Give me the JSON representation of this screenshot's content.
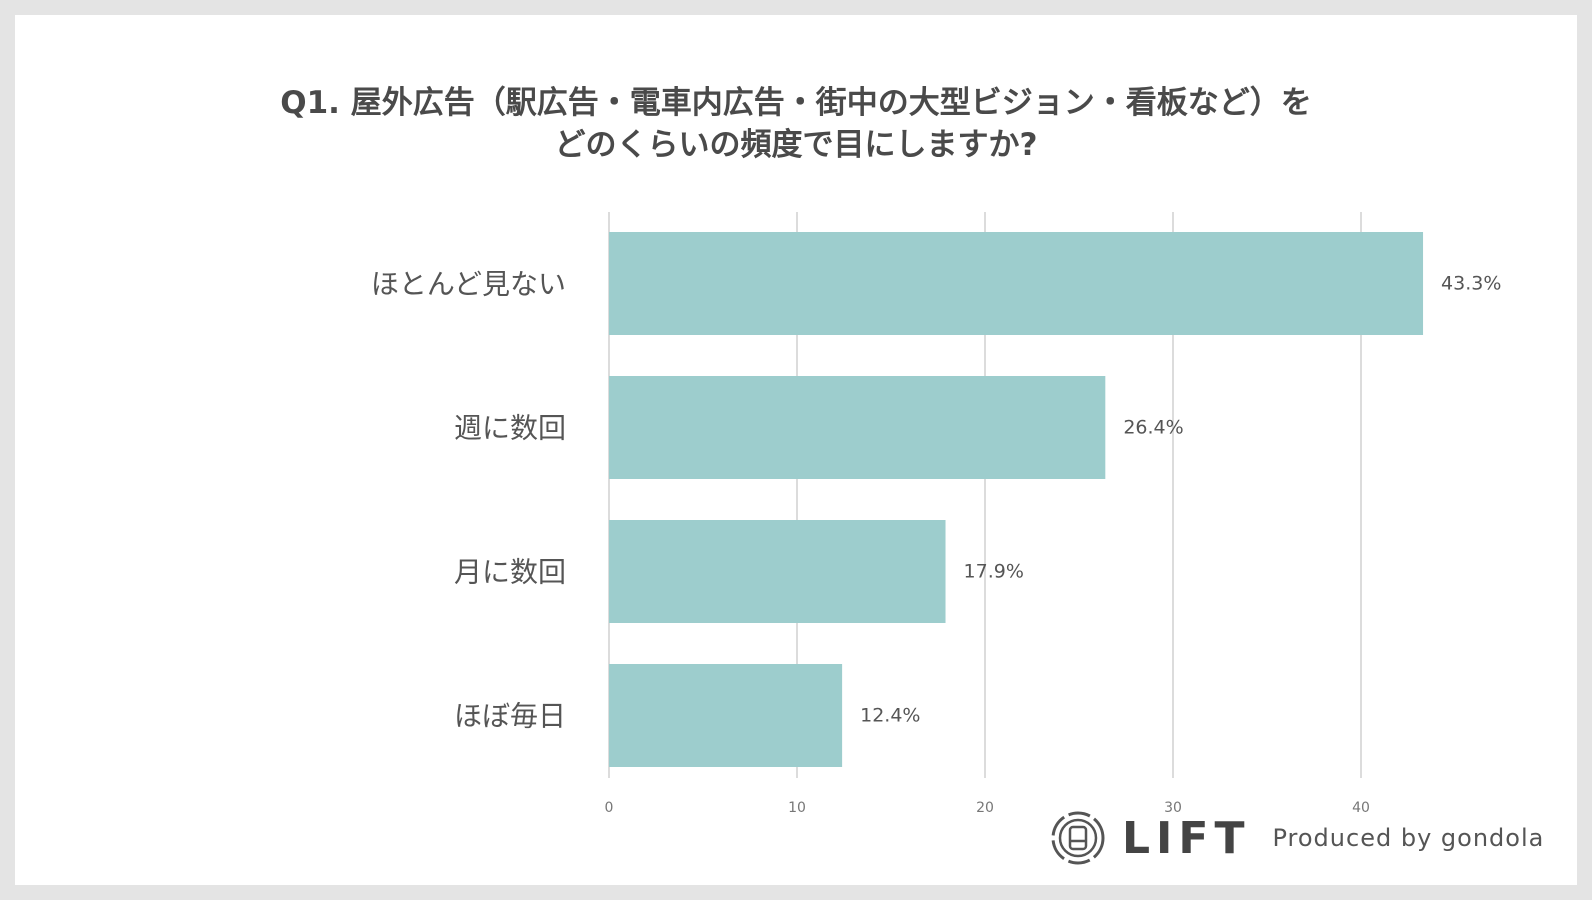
{
  "chart_data": {
    "type": "bar",
    "orientation": "horizontal",
    "title_lines": [
      "Q1. 屋外広告（駅広告・電車内広告・街中の大型ビジョン・看板など）を",
      "どのくらいの頻度で目にしますか?"
    ],
    "categories": [
      "ほとんど見ない",
      "週に数回",
      "月に数回",
      "ほぼ毎日"
    ],
    "values": [
      43.3,
      26.4,
      17.9,
      12.4
    ],
    "data_labels": [
      "43.3%",
      "26.4%",
      "17.9%",
      "12.4%"
    ],
    "xticks": [
      "0",
      "10",
      "20",
      "30",
      "40"
    ],
    "xlim": [
      0,
      45
    ],
    "grid": true,
    "bar_color": "#9dcdcd"
  },
  "branding": {
    "logo_text": "LIFT",
    "produced_by": "Produced by gondola"
  }
}
